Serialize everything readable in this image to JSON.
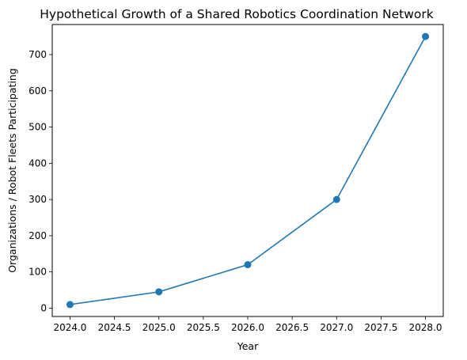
{
  "chart_data": {
    "type": "line",
    "title": "Hypothetical Growth of a Shared Robotics Coordination Network",
    "xlabel": "Year",
    "ylabel": "Organizations / Robot Fleets Participating",
    "xlim": [
      2023.8,
      2028.2
    ],
    "ylim": [
      -23,
      783
    ],
    "x_ticks": [
      "2024.0",
      "2024.5",
      "2025.0",
      "2025.5",
      "2026.0",
      "2026.5",
      "2027.0",
      "2027.5",
      "2028.0"
    ],
    "y_ticks": [
      "0",
      "100",
      "200",
      "300",
      "400",
      "500",
      "600",
      "700"
    ],
    "grid": false,
    "series": [
      {
        "x": [
          2024,
          2025,
          2026,
          2027,
          2028
        ],
        "y": [
          10,
          45,
          120,
          300,
          750
        ],
        "color": "#1f77b4",
        "marker": "circle"
      }
    ]
  }
}
